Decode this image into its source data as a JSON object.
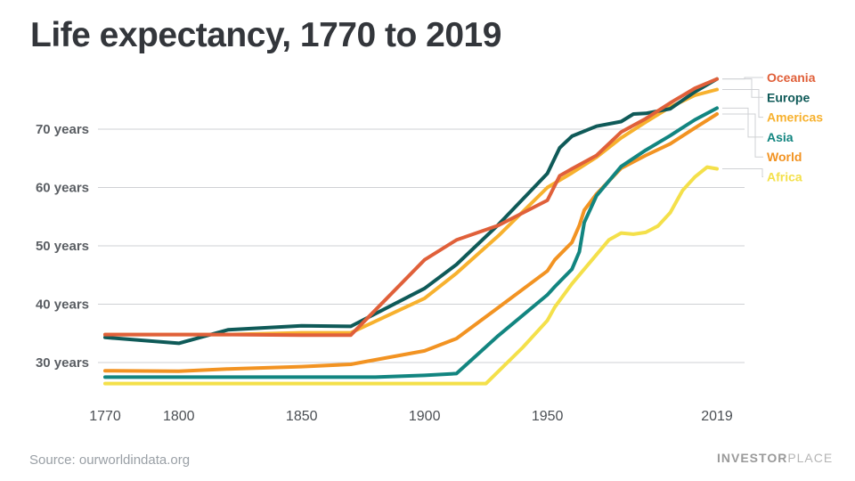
{
  "chart_data": {
    "type": "line",
    "title": "Life expectancy, 1770 to 2019",
    "xlabel": "",
    "ylabel": "",
    "xlim": [
      1770,
      2023
    ],
    "ylim": [
      25,
      80
    ],
    "x_ticks": [
      {
        "value": 1770,
        "label": "1770"
      },
      {
        "value": 1800,
        "label": "1800"
      },
      {
        "value": 1850,
        "label": "1850"
      },
      {
        "value": 1900,
        "label": "1900"
      },
      {
        "value": 1950,
        "label": "1950"
      },
      {
        "value": 2019,
        "label": "2019"
      }
    ],
    "y_ticks": [
      {
        "value": 30,
        "label": "30 years"
      },
      {
        "value": 40,
        "label": "40 years"
      },
      {
        "value": 50,
        "label": "50 years"
      },
      {
        "value": 60,
        "label": "60 years"
      },
      {
        "value": 70,
        "label": "70 years"
      }
    ],
    "grid": true,
    "legend_placement": "right",
    "series": [
      {
        "name": "Oceania",
        "color": "#e0603a",
        "points": [
          [
            1770,
            34.8
          ],
          [
            1800,
            34.8
          ],
          [
            1820,
            34.8
          ],
          [
            1850,
            34.7
          ],
          [
            1870,
            34.7
          ],
          [
            1900,
            47.6
          ],
          [
            1913,
            51.0
          ],
          [
            1930,
            53.5
          ],
          [
            1950,
            57.8
          ],
          [
            1955,
            62.0
          ],
          [
            1960,
            63.2
          ],
          [
            1970,
            65.5
          ],
          [
            1980,
            69.5
          ],
          [
            1990,
            71.8
          ],
          [
            2000,
            74.5
          ],
          [
            2010,
            77.0
          ],
          [
            2019,
            78.6
          ]
        ]
      },
      {
        "name": "Europe",
        "color": "#0f5a58",
        "points": [
          [
            1770,
            34.3
          ],
          [
            1800,
            33.3
          ],
          [
            1820,
            35.6
          ],
          [
            1850,
            36.3
          ],
          [
            1870,
            36.2
          ],
          [
            1900,
            42.7
          ],
          [
            1913,
            46.8
          ],
          [
            1930,
            53.6
          ],
          [
            1950,
            62.4
          ],
          [
            1955,
            66.8
          ],
          [
            1960,
            68.8
          ],
          [
            1970,
            70.5
          ],
          [
            1980,
            71.3
          ],
          [
            1985,
            72.6
          ],
          [
            1990,
            72.7
          ],
          [
            2000,
            73.5
          ],
          [
            2010,
            76.4
          ],
          [
            2019,
            78.6
          ]
        ]
      },
      {
        "name": "Americas",
        "color": "#f7b12e",
        "points": [
          [
            1770,
            34.8
          ],
          [
            1800,
            34.8
          ],
          [
            1820,
            34.8
          ],
          [
            1850,
            35.1
          ],
          [
            1870,
            35.1
          ],
          [
            1900,
            41.0
          ],
          [
            1913,
            45.3
          ],
          [
            1930,
            51.7
          ],
          [
            1950,
            60.0
          ],
          [
            1960,
            62.5
          ],
          [
            1970,
            65.2
          ],
          [
            1980,
            68.5
          ],
          [
            1990,
            71.2
          ],
          [
            2000,
            73.8
          ],
          [
            2010,
            75.8
          ],
          [
            2019,
            76.8
          ]
        ]
      },
      {
        "name": "Asia",
        "color": "#128580",
        "points": [
          [
            1770,
            27.5
          ],
          [
            1800,
            27.5
          ],
          [
            1850,
            27.5
          ],
          [
            1880,
            27.5
          ],
          [
            1900,
            27.8
          ],
          [
            1913,
            28.1
          ],
          [
            1930,
            34.6
          ],
          [
            1950,
            41.6
          ],
          [
            1953,
            43.0
          ],
          [
            1960,
            46.0
          ],
          [
            1963,
            49.0
          ],
          [
            1965,
            54.0
          ],
          [
            1970,
            58.6
          ],
          [
            1980,
            63.6
          ],
          [
            1990,
            66.4
          ],
          [
            2000,
            68.9
          ],
          [
            2010,
            71.6
          ],
          [
            2019,
            73.6
          ]
        ]
      },
      {
        "name": "World",
        "color": "#f29322",
        "points": [
          [
            1770,
            28.6
          ],
          [
            1800,
            28.5
          ],
          [
            1820,
            28.9
          ],
          [
            1850,
            29.3
          ],
          [
            1870,
            29.7
          ],
          [
            1900,
            32.0
          ],
          [
            1913,
            34.1
          ],
          [
            1930,
            39.4
          ],
          [
            1950,
            45.7
          ],
          [
            1953,
            47.6
          ],
          [
            1960,
            50.6
          ],
          [
            1963,
            53.5
          ],
          [
            1965,
            56.1
          ],
          [
            1970,
            58.9
          ],
          [
            1980,
            63.3
          ],
          [
            1990,
            65.5
          ],
          [
            2000,
            67.5
          ],
          [
            2010,
            70.2
          ],
          [
            2019,
            72.6
          ]
        ]
      },
      {
        "name": "Africa",
        "color": "#f4e04a",
        "points": [
          [
            1770,
            26.4
          ],
          [
            1800,
            26.4
          ],
          [
            1850,
            26.4
          ],
          [
            1900,
            26.4
          ],
          [
            1925,
            26.4
          ],
          [
            1940,
            32.6
          ],
          [
            1950,
            37.2
          ],
          [
            1953,
            39.5
          ],
          [
            1960,
            43.5
          ],
          [
            1970,
            48.5
          ],
          [
            1975,
            51.0
          ],
          [
            1980,
            52.2
          ],
          [
            1985,
            52.0
          ],
          [
            1990,
            52.3
          ],
          [
            1995,
            53.4
          ],
          [
            2000,
            55.7
          ],
          [
            2005,
            59.5
          ],
          [
            2010,
            61.8
          ],
          [
            2015,
            63.5
          ],
          [
            2019,
            63.2
          ]
        ]
      }
    ],
    "legend_order": [
      "Oceania",
      "Europe",
      "Americas",
      "Asia",
      "World",
      "Africa"
    ]
  },
  "footer": {
    "source": "Source: ourworldindata.org",
    "brand_bold": "INVESTOR",
    "brand_light": "PLACE"
  }
}
